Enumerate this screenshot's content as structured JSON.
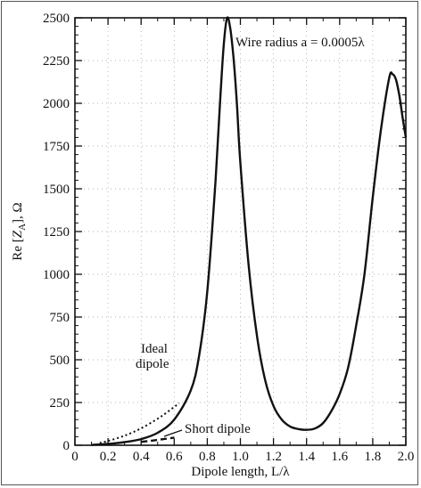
{
  "chart_data": {
    "type": "line",
    "title": "",
    "xlabel": "Dipole length, L/λ",
    "ylabel": "Re [Z_A], Ω",
    "ylabel_parts": {
      "pre": "Re [",
      "main": "Z",
      "sub": "A",
      "post": "], Ω"
    },
    "xlim": [
      0,
      2.0
    ],
    "ylim": [
      0,
      2500
    ],
    "xticks": [
      0,
      0.2,
      0.4,
      0.6,
      0.8,
      1.0,
      1.2,
      1.4,
      1.6,
      1.8,
      2.0
    ],
    "xtick_labels": [
      "0",
      "0.2",
      "0.4",
      "0.6",
      "0.8",
      "1.0",
      "1.2",
      "1.4",
      "1.6",
      "1.8",
      "2.0"
    ],
    "yticks": [
      0,
      250,
      500,
      750,
      1000,
      1250,
      1500,
      1750,
      2000,
      2250,
      2500
    ],
    "ytick_labels": [
      "0",
      "250",
      "500",
      "750",
      "1000",
      "1250",
      "1500",
      "1750",
      "2000",
      "2250",
      "2500"
    ],
    "grid": "dotted",
    "annotations": {
      "wire_radius": "Wire radius a = 0.0005λ",
      "ideal_dipole_line1": "Ideal",
      "ideal_dipole_line2": "dipole",
      "short_dipole": "Short dipole"
    },
    "series": [
      {
        "style": "solid",
        "x": [
          0.1,
          0.2,
          0.3,
          0.4,
          0.5,
          0.6,
          0.7,
          0.75,
          0.8,
          0.85,
          0.88,
          0.9,
          0.92,
          0.94,
          0.96,
          0.98,
          1.0,
          1.05,
          1.1,
          1.15,
          1.2,
          1.25,
          1.3,
          1.35,
          1.4,
          1.45,
          1.5,
          1.55,
          1.6,
          1.65,
          1.7,
          1.75,
          1.8,
          1.85,
          1.9,
          1.92,
          1.94,
          1.96,
          1.98,
          2.0
        ],
        "y": [
          2,
          8,
          18,
          36,
          73,
          150,
          320,
          520,
          900,
          1550,
          2050,
          2350,
          2500,
          2430,
          2250,
          1980,
          1650,
          1050,
          640,
          380,
          230,
          150,
          110,
          95,
          90,
          98,
          130,
          200,
          300,
          450,
          700,
          1000,
          1450,
          1850,
          2150,
          2170,
          2140,
          2050,
          1920,
          1800
        ]
      },
      {
        "style": "dotted",
        "x": [
          0.15,
          0.2,
          0.3,
          0.4,
          0.5,
          0.55,
          0.6,
          0.63
        ],
        "y": [
          14,
          25,
          56,
          99,
          155,
          188,
          224,
          246
        ]
      },
      {
        "style": "dashed",
        "x": [
          0.4,
          0.45,
          0.5,
          0.55,
          0.6
        ],
        "y": [
          20,
          25,
          31,
          38,
          45
        ]
      }
    ]
  }
}
